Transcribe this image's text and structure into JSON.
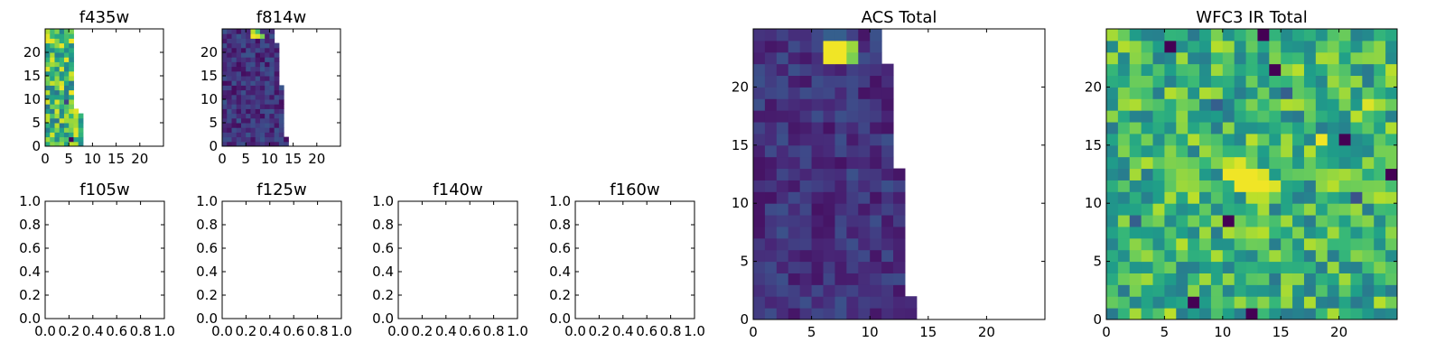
{
  "chart_data": [
    {
      "id": "f435w",
      "type": "heatmap",
      "title": "f435w",
      "xlim": [
        0,
        25
      ],
      "ylim": [
        0,
        25
      ],
      "xticks": [
        0,
        5,
        10,
        15,
        20
      ],
      "yticks": [
        0,
        5,
        10,
        15,
        20
      ],
      "extent_x": 7,
      "filled_width_by_row": [
        8,
        8,
        8,
        8,
        8,
        8,
        8,
        7,
        6,
        6,
        6,
        6,
        6,
        6,
        6,
        6,
        6,
        6,
        6,
        6,
        6,
        6,
        6,
        6,
        6
      ],
      "colormap": "viridis",
      "seed": 435,
      "base": 0.68,
      "noise": 0.3,
      "hot": [
        [
          5,
          22,
          0.98
        ],
        [
          1,
          18,
          0.95
        ],
        [
          3,
          12,
          0.98
        ],
        [
          5,
          1,
          0.02
        ],
        [
          4,
          9,
          0.2
        ]
      ]
    },
    {
      "id": "f814w",
      "type": "heatmap",
      "title": "f814w",
      "xlim": [
        0,
        25
      ],
      "ylim": [
        0,
        25
      ],
      "xticks": [
        0,
        5,
        10,
        15,
        20
      ],
      "yticks": [
        0,
        5,
        10,
        15,
        20
      ],
      "filled_width_by_row": [
        14,
        14,
        13,
        13,
        13,
        13,
        13,
        13,
        13,
        13,
        13,
        13,
        13,
        12,
        12,
        12,
        12,
        12,
        12,
        12,
        12,
        12,
        11,
        11,
        11
      ],
      "colormap": "viridis",
      "seed": 814,
      "base": 0.15,
      "noise": 0.12,
      "hot": [
        [
          6,
          23,
          0.98
        ],
        [
          7,
          23,
          0.95
        ],
        [
          8,
          23,
          0.8
        ],
        [
          6,
          24,
          0.9
        ],
        [
          7,
          24,
          0.7
        ]
      ]
    },
    {
      "id": "f105w",
      "type": "empty",
      "title": "f105w",
      "xlim": [
        0,
        1
      ],
      "ylim": [
        0,
        1
      ],
      "xticks": [
        "0.0",
        "0.2",
        "0.4",
        "0.6",
        "0.8",
        "1.0"
      ],
      "yticks": [
        "0.0",
        "0.2",
        "0.4",
        "0.6",
        "0.8",
        "1.0"
      ]
    },
    {
      "id": "f125w",
      "type": "empty",
      "title": "f125w",
      "xlim": [
        0,
        1
      ],
      "ylim": [
        0,
        1
      ],
      "xticks": [
        "0.0",
        "0.2",
        "0.4",
        "0.6",
        "0.8",
        "1.0"
      ],
      "yticks": [
        "0.0",
        "0.2",
        "0.4",
        "0.6",
        "0.8",
        "1.0"
      ]
    },
    {
      "id": "f140w",
      "type": "empty",
      "title": "f140w",
      "xlim": [
        0,
        1
      ],
      "ylim": [
        0,
        1
      ],
      "xticks": [
        "0.0",
        "0.2",
        "0.4",
        "0.6",
        "0.8",
        "1.0"
      ],
      "yticks": [
        "0.0",
        "0.2",
        "0.4",
        "0.6",
        "0.8",
        "1.0"
      ]
    },
    {
      "id": "f160w",
      "type": "empty",
      "title": "f160w",
      "xlim": [
        0,
        1
      ],
      "ylim": [
        0,
        1
      ],
      "xticks": [
        "0.0",
        "0.2",
        "0.4",
        "0.6",
        "0.8",
        "1.0"
      ],
      "yticks": [
        "0.0",
        "0.2",
        "0.4",
        "0.6",
        "0.8",
        "1.0"
      ]
    },
    {
      "id": "acs-total",
      "type": "heatmap",
      "title": "ACS Total",
      "xlim": [
        0,
        25
      ],
      "ylim": [
        0,
        25
      ],
      "xticks": [
        0,
        5,
        10,
        15,
        20
      ],
      "yticks": [
        0,
        5,
        10,
        15,
        20
      ],
      "filled_width_by_row": [
        14,
        14,
        13,
        13,
        13,
        13,
        13,
        13,
        13,
        13,
        13,
        13,
        13,
        12,
        12,
        12,
        12,
        12,
        12,
        12,
        12,
        12,
        11,
        11,
        11
      ],
      "colormap": "viridis",
      "seed": 1010,
      "base": 0.15,
      "noise": 0.1,
      "hot": [
        [
          6,
          22,
          0.98
        ],
        [
          7,
          22,
          0.98
        ],
        [
          6,
          23,
          0.98
        ],
        [
          7,
          23,
          0.98
        ],
        [
          8,
          23,
          0.85
        ],
        [
          8,
          22,
          0.8
        ],
        [
          6,
          24,
          0.3
        ],
        [
          7,
          24,
          0.3
        ]
      ]
    },
    {
      "id": "wfc3-ir-total",
      "type": "heatmap",
      "title": "WFC3 IR Total",
      "xlim": [
        0,
        25
      ],
      "ylim": [
        0,
        25
      ],
      "xticks": [
        0,
        5,
        10,
        15,
        20
      ],
      "yticks": [
        0,
        5,
        10,
        15,
        20
      ],
      "filled_width_by_row": [
        25,
        25,
        25,
        25,
        25,
        25,
        25,
        25,
        25,
        25,
        25,
        25,
        25,
        25,
        25,
        25,
        25,
        25,
        25,
        25,
        25,
        25,
        25,
        25,
        25
      ],
      "colormap": "viridis",
      "seed": 2020,
      "base": 0.65,
      "noise": 0.25,
      "hot": [
        [
          10,
          12,
          0.98
        ],
        [
          11,
          12,
          0.98
        ],
        [
          12,
          12,
          0.98
        ],
        [
          13,
          11,
          0.98
        ],
        [
          12,
          11,
          0.98
        ],
        [
          11,
          11,
          0.98
        ],
        [
          13,
          12,
          0.95
        ],
        [
          14,
          11,
          0.95
        ],
        [
          10,
          13,
          0.9
        ],
        [
          11,
          13,
          0.95
        ],
        [
          12,
          10,
          0.9
        ],
        [
          13,
          10,
          0.9
        ],
        [
          18,
          15,
          0.98
        ],
        [
          22,
          18,
          0.95
        ],
        [
          7,
          1,
          0.0
        ],
        [
          12,
          0,
          0.0
        ],
        [
          10,
          8,
          0.0
        ],
        [
          20,
          15,
          0.0
        ],
        [
          13,
          24,
          0.0
        ],
        [
          5,
          23,
          0.0
        ],
        [
          24,
          12,
          0.0
        ],
        [
          14,
          21,
          0.0
        ],
        [
          21,
          10,
          0.25
        ],
        [
          15,
          19,
          0.3
        ],
        [
          2,
          8,
          0.3
        ],
        [
          9,
          18,
          0.3
        ]
      ]
    }
  ]
}
